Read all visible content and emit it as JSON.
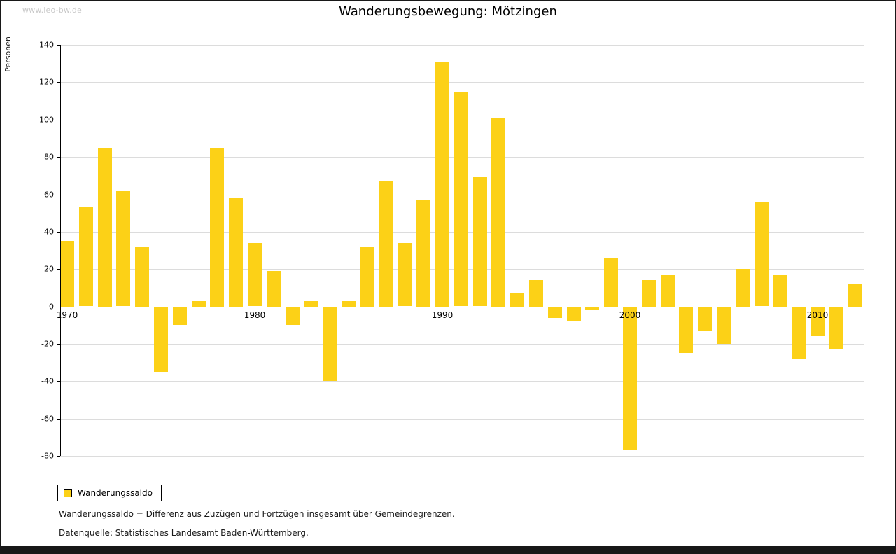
{
  "watermark": "www.leo-bw.de",
  "title": "Wanderungsbewegung: Mötzingen",
  "ylabel": "Personen",
  "legend": {
    "label": "Wanderungssaldo"
  },
  "footnotes": [
    "Wanderungssaldo = Differenz aus Zuzügen und Fortzügen insgesamt über Gemeindegrenzen.",
    "Datenquelle: Statistisches Landesamt Baden-Württemberg."
  ],
  "colors": {
    "bar": "#fcd117",
    "grid": "#dcdcdc",
    "axis": "#000000",
    "watermark": "#c9c9c9"
  },
  "chart_data": {
    "type": "bar",
    "title": "Wanderungsbewegung: Mötzingen",
    "xlabel": "",
    "ylabel": "Personen",
    "ylim": [
      -80,
      140
    ],
    "ytick_step": 20,
    "grid": true,
    "legend_position": "bottom-left",
    "series_name": "Wanderungssaldo",
    "x": [
      1970,
      1971,
      1972,
      1973,
      1974,
      1975,
      1976,
      1977,
      1978,
      1979,
      1980,
      1981,
      1982,
      1983,
      1984,
      1985,
      1986,
      1987,
      1988,
      1989,
      1990,
      1991,
      1992,
      1993,
      1994,
      1995,
      1996,
      1997,
      1998,
      1999,
      2000,
      2001,
      2002,
      2003,
      2004,
      2005,
      2006,
      2007,
      2008,
      2009,
      2010,
      2011,
      2012
    ],
    "values": [
      35,
      53,
      85,
      62,
      32,
      -35,
      -10,
      3,
      85,
      58,
      34,
      19,
      -10,
      3,
      -40,
      3,
      32,
      67,
      34,
      57,
      131,
      115,
      69,
      101,
      7,
      14,
      -6,
      -8,
      -2,
      26,
      -77,
      14,
      17,
      -25,
      -13,
      -20,
      20,
      56,
      17,
      -28,
      -16,
      -23,
      12
    ],
    "xticks": [
      1970,
      1980,
      1990,
      2000,
      2010
    ]
  }
}
